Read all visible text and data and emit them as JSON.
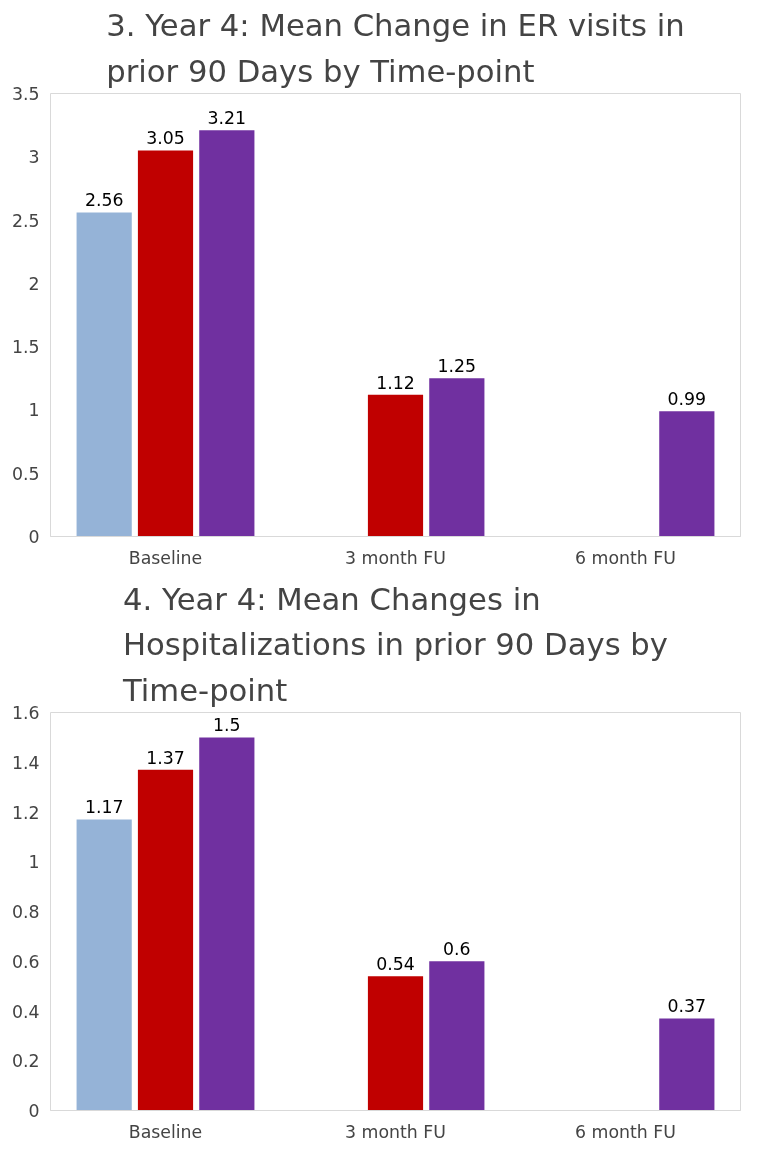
{
  "chart_data": [
    {
      "type": "bar",
      "title": "3. Year 4: Mean Change in ER visits in prior 90 Days by Time-point",
      "categories": [
        "Baseline",
        "3 month FU",
        "6 month FU"
      ],
      "series": [
        {
          "color": "#95b3d7",
          "values": [
            2.56,
            null,
            null
          ]
        },
        {
          "color": "#c00000",
          "values": [
            3.05,
            1.12,
            null
          ]
        },
        {
          "color": "#7030a0",
          "values": [
            3.21,
            1.25,
            0.99
          ]
        }
      ],
      "ylim": [
        0,
        3.5
      ],
      "yticks": [
        0,
        0.5,
        1,
        1.5,
        2,
        2.5,
        3,
        3.5
      ],
      "grid": false,
      "data_labels": true
    },
    {
      "type": "bar",
      "title": "4. Year 4: Mean Changes in Hospitalizations in prior 90 Days by Time-point",
      "categories": [
        "Baseline",
        "3 month FU",
        "6 month FU"
      ],
      "series": [
        {
          "color": "#95b3d7",
          "values": [
            1.17,
            null,
            null
          ]
        },
        {
          "color": "#c00000",
          "values": [
            1.37,
            0.54,
            null
          ]
        },
        {
          "color": "#7030a0",
          "values": [
            1.5,
            0.6,
            0.37
          ]
        }
      ],
      "ylim": [
        0,
        1.6
      ],
      "yticks": [
        0,
        0.2,
        0.4,
        0.6,
        0.8,
        1,
        1.2,
        1.4,
        1.6
      ],
      "grid": false,
      "data_labels": true
    }
  ]
}
